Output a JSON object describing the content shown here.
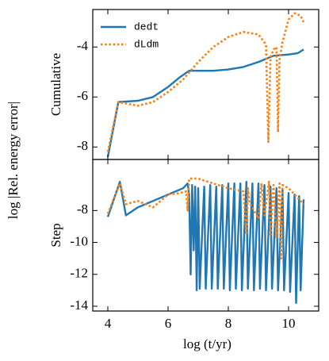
{
  "chart_data": [
    {
      "type": "line",
      "ylabel": "Cumulative",
      "figure_ylabel": "log |Rel. energy error|",
      "xlim": [
        3.5,
        11.0
      ],
      "xticks": [
        4,
        6,
        8,
        10
      ],
      "ylim": [
        -8.5,
        -2.5
      ],
      "yticks": [
        -8,
        -6,
        -4
      ],
      "legend": "upper left",
      "series": [
        {
          "name": "dedt",
          "color": "#1f77b4",
          "style": "solid",
          "x": [
            4,
            4.35,
            5,
            5.5,
            6,
            6.4,
            6.7,
            7,
            7.5,
            8,
            8.5,
            9,
            9.5,
            10,
            10.3,
            10.5
          ],
          "values": [
            -8.4,
            -6.2,
            -6.15,
            -6.0,
            -5.6,
            -5.2,
            -4.95,
            -4.95,
            -4.95,
            -4.9,
            -4.8,
            -4.6,
            -4.35,
            -4.3,
            -4.25,
            -4.1
          ]
        },
        {
          "name": "dLdm",
          "color": "#ff7f0e",
          "style": "dotted",
          "x": [
            4,
            4.35,
            5,
            5.5,
            6,
            6.5,
            7,
            7.5,
            8,
            8.5,
            9,
            9.25,
            9.33,
            9.4,
            9.5,
            9.6,
            9.65,
            9.7,
            9.8,
            10,
            10.2,
            10.4,
            10.5
          ],
          "values": [
            -8.2,
            -6.2,
            -6.35,
            -6.2,
            -5.8,
            -5.3,
            -4.6,
            -4.0,
            -3.6,
            -3.4,
            -3.5,
            -3.9,
            -7.8,
            -4.4,
            -4.1,
            -4.0,
            -7.4,
            -4.5,
            -3.8,
            -2.9,
            -2.65,
            -2.75,
            -3.0
          ]
        }
      ]
    },
    {
      "type": "line",
      "ylabel": "Step",
      "xlabel": "log (t/yr)",
      "xlim": [
        3.5,
        11.0
      ],
      "xticks": [
        4,
        6,
        8,
        10
      ],
      "ylim": [
        -14.3,
        -4.8
      ],
      "yticks": [
        -14,
        -12,
        -10,
        -8
      ],
      "series": [
        {
          "color": "#1f77b4",
          "style": "solid",
          "x": [
            4,
            4.4,
            4.6,
            5,
            5.5,
            6,
            6.5,
            6.65,
            6.7,
            6.75,
            6.8,
            6.85,
            6.9,
            6.95,
            7.0,
            7.05,
            7.2,
            7.25,
            7.4,
            7.45,
            7.6,
            7.65,
            7.8,
            7.85,
            8.0,
            8.05,
            8.2,
            8.25,
            8.4,
            8.45,
            8.6,
            8.65,
            8.8,
            8.85,
            9.0,
            9.05,
            9.2,
            9.25,
            9.4,
            9.45,
            9.6,
            9.65,
            9.8,
            9.85,
            10.0,
            10.05,
            10.2,
            10.25,
            10.35,
            10.4,
            10.5
          ],
          "values": [
            -8.4,
            -6.2,
            -8.3,
            -7.8,
            -7.4,
            -7.0,
            -6.6,
            -6.3,
            -7.0,
            -12.0,
            -6.4,
            -10.5,
            -6.5,
            -13.0,
            -6.6,
            -12.9,
            -6.5,
            -12.9,
            -6.4,
            -12.9,
            -6.5,
            -12.9,
            -6.4,
            -12.9,
            -6.3,
            -13.0,
            -6.3,
            -12.9,
            -6.3,
            -13.0,
            -6.2,
            -12.9,
            -6.3,
            -13.0,
            -6.3,
            -12.9,
            -6.4,
            -13.0,
            -6.5,
            -12.9,
            -6.6,
            -13.0,
            -6.7,
            -13.0,
            -6.9,
            -13.1,
            -7.0,
            -13.8,
            -7.1,
            -13.0,
            -7.3
          ]
        },
        {
          "color": "#ff7f0e",
          "style": "dotted",
          "x": [
            4,
            4.4,
            4.6,
            5,
            5.5,
            6,
            6.4,
            6.6,
            6.65,
            6.7,
            7,
            7.5,
            8,
            8.5,
            8.6,
            8.65,
            8.7,
            9,
            9.1,
            9.2,
            9.35,
            9.4,
            9.5,
            9.6,
            9.7,
            9.75,
            9.8,
            10,
            10.2,
            10.5
          ],
          "values": [
            -8.2,
            -6.3,
            -7.6,
            -7.4,
            -7.8,
            -7.0,
            -6.9,
            -6.8,
            -8.0,
            -6.0,
            -6.0,
            -6.3,
            -6.6,
            -6.8,
            -9.5,
            -6.6,
            -7.5,
            -8.5,
            -6.3,
            -8.3,
            -6.2,
            -9.5,
            -6.4,
            -9.7,
            -6.3,
            -11.0,
            -6.4,
            -6.6,
            -7.0,
            -7.6
          ]
        }
      ]
    }
  ]
}
